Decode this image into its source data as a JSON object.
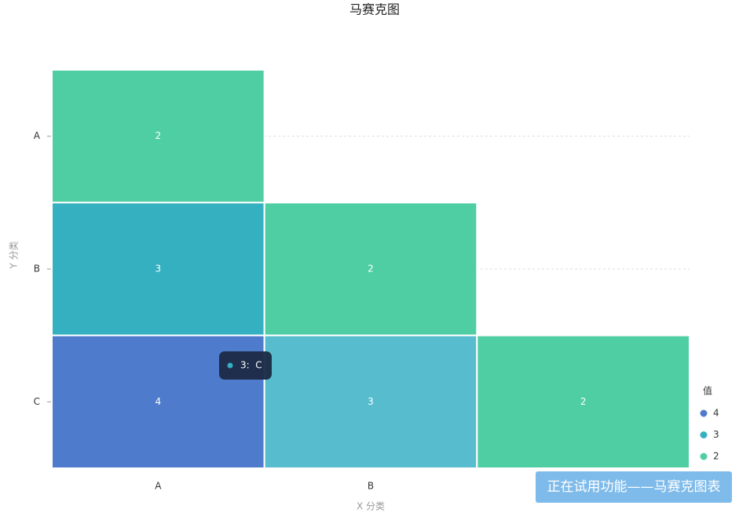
{
  "chart_data": {
    "type": "mosaic",
    "title": "马赛克图",
    "x_label": "X 分类",
    "y_label": "Y 分类",
    "x_categories": [
      "A",
      "B",
      null
    ],
    "y_categories": [
      "A",
      "B",
      "C"
    ],
    "cells": [
      {
        "x": 0,
        "y": 0,
        "value": 2,
        "color": "#4fcea3"
      },
      {
        "x": 0,
        "y": 1,
        "value": 3,
        "color": "#34b0c1"
      },
      {
        "x": 0,
        "y": 2,
        "value": 4,
        "color": "#4e7bcb"
      },
      {
        "x": 1,
        "y": 1,
        "value": 2,
        "color": "#4fcea3"
      },
      {
        "x": 1,
        "y": 2,
        "value": 3,
        "color": "#56bcce"
      },
      {
        "x": 2,
        "y": 2,
        "value": 2,
        "color": "#4fcea3"
      }
    ],
    "legend": {
      "title": "值",
      "items": [
        {
          "value": 4,
          "color": "#4e7bcb"
        },
        {
          "value": 3,
          "color": "#34b0c1"
        },
        {
          "value": 2,
          "color": "#4fcea3"
        }
      ]
    },
    "tooltip": {
      "text": "3:  C",
      "color": "#34b0c1"
    },
    "grid": true
  },
  "notice": "正在试用功能——马赛克图表"
}
